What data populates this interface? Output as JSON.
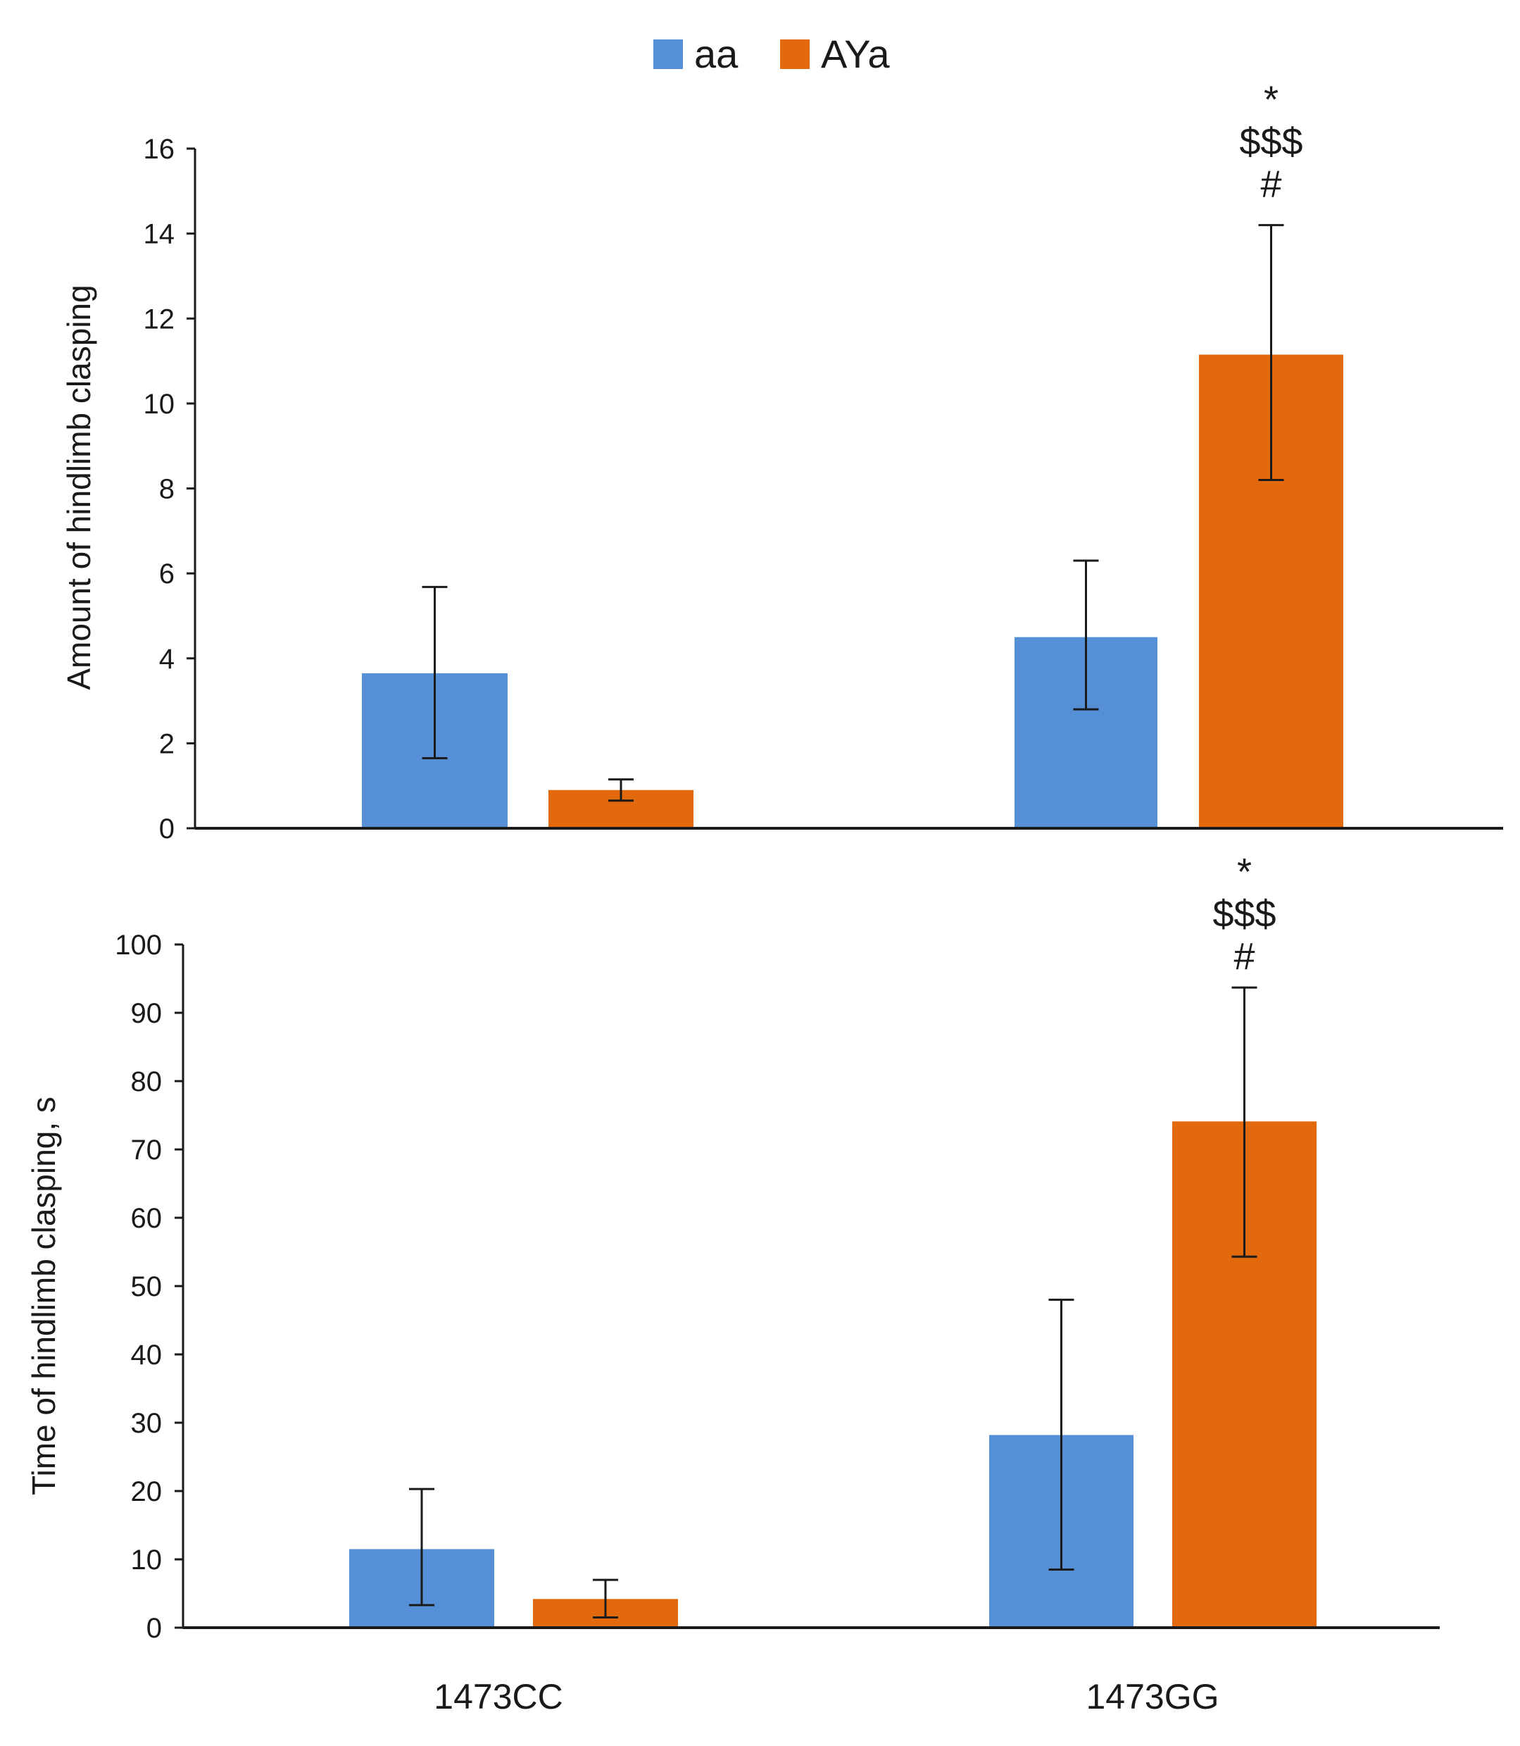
{
  "legend": {
    "items": [
      {
        "label": "aa",
        "color": "#5590d6"
      },
      {
        "label": "AYa",
        "color": "#e2690c"
      }
    ]
  },
  "chart_data": [
    {
      "type": "bar",
      "title": "",
      "xlabel": "",
      "ylabel": "Amount of hindlimb clasping",
      "categories": [
        "1473CC",
        "1473GG"
      ],
      "ylim": [
        0,
        16
      ],
      "yticks": [
        0,
        2,
        4,
        6,
        8,
        10,
        12,
        14,
        16
      ],
      "series": [
        {
          "name": "aa",
          "color": "#5590d6",
          "values": [
            3.65,
            4.5
          ],
          "error_low": [
            1.65,
            2.8
          ],
          "error_high": [
            5.68,
            6.3
          ]
        },
        {
          "name": "AYa",
          "color": "#e2690c",
          "values": [
            0.9,
            11.15
          ],
          "error_low": [
            0.65,
            8.2
          ],
          "error_high": [
            1.15,
            14.2
          ]
        }
      ],
      "annotations": [
        {
          "category": "1473GG",
          "series": "AYa",
          "lines": [
            "*",
            "$$$",
            "#"
          ]
        }
      ]
    },
    {
      "type": "bar",
      "title": "",
      "xlabel": "",
      "ylabel": "Time of hindlimb clasping, s",
      "categories": [
        "1473CC",
        "1473GG"
      ],
      "ylim": [
        0,
        100
      ],
      "yticks": [
        0,
        10,
        20,
        30,
        40,
        50,
        60,
        70,
        80,
        90,
        100
      ],
      "series": [
        {
          "name": "aa",
          "color": "#5590d6",
          "values": [
            11.5,
            28.2
          ],
          "error_low": [
            3.3,
            8.5
          ],
          "error_high": [
            20.3,
            48.0
          ]
        },
        {
          "name": "AYa",
          "color": "#e2690c",
          "values": [
            4.2,
            74.1
          ],
          "error_low": [
            1.5,
            54.3
          ],
          "error_high": [
            7.0,
            93.7
          ]
        }
      ],
      "annotations": [
        {
          "category": "1473GG",
          "series": "AYa",
          "lines": [
            "*",
            "$$$",
            "#"
          ]
        }
      ]
    }
  ]
}
